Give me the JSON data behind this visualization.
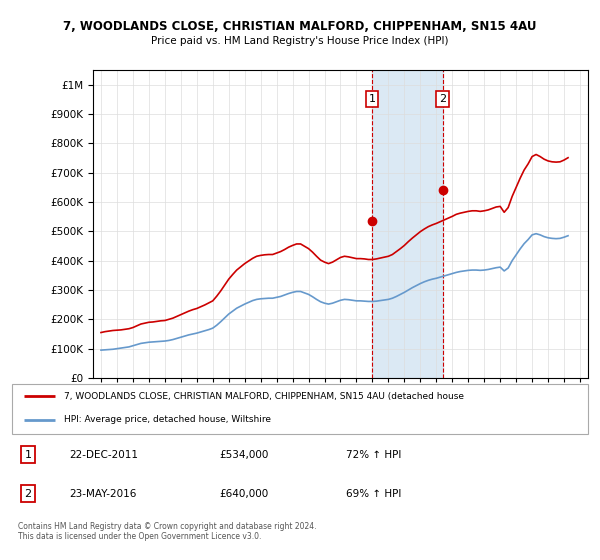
{
  "title": "7, WOODLANDS CLOSE, CHRISTIAN MALFORD, CHIPPENHAM, SN15 4AU",
  "subtitle": "Price paid vs. HM Land Registry's House Price Index (HPI)",
  "property_label": "7, WOODLANDS CLOSE, CHRISTIAN MALFORD, CHIPPENHAM, SN15 4AU (detached house",
  "hpi_label": "HPI: Average price, detached house, Wiltshire",
  "sale1_date": "22-DEC-2011",
  "sale1_price": 534000,
  "sale1_pct": "72% ↑ HPI",
  "sale2_date": "23-MAY-2016",
  "sale2_price": 640000,
  "sale2_pct": "69% ↑ HPI",
  "copyright": "Contains HM Land Registry data © Crown copyright and database right 2024.\nThis data is licensed under the Open Government Licence v3.0.",
  "property_color": "#cc0000",
  "hpi_color": "#6699cc",
  "shade_color": "#cce0f0",
  "sale1_x": 2011.97,
  "sale2_x": 2016.39,
  "ylim_min": 0,
  "ylim_max": 1050000,
  "xlim_min": 1994.5,
  "xlim_max": 2025.5,
  "hpi_data_x": [
    1995,
    1995.25,
    1995.5,
    1995.75,
    1996,
    1996.25,
    1996.5,
    1996.75,
    1997,
    1997.25,
    1997.5,
    1997.75,
    1998,
    1998.25,
    1998.5,
    1998.75,
    1999,
    1999.25,
    1999.5,
    1999.75,
    2000,
    2000.25,
    2000.5,
    2000.75,
    2001,
    2001.25,
    2001.5,
    2001.75,
    2002,
    2002.25,
    2002.5,
    2002.75,
    2003,
    2003.25,
    2003.5,
    2003.75,
    2004,
    2004.25,
    2004.5,
    2004.75,
    2005,
    2005.25,
    2005.5,
    2005.75,
    2006,
    2006.25,
    2006.5,
    2006.75,
    2007,
    2007.25,
    2007.5,
    2007.75,
    2008,
    2008.25,
    2008.5,
    2008.75,
    2009,
    2009.25,
    2009.5,
    2009.75,
    2010,
    2010.25,
    2010.5,
    2010.75,
    2011,
    2011.25,
    2011.5,
    2011.75,
    2012,
    2012.25,
    2012.5,
    2012.75,
    2013,
    2013.25,
    2013.5,
    2013.75,
    2014,
    2014.25,
    2014.5,
    2014.75,
    2015,
    2015.25,
    2015.5,
    2015.75,
    2016,
    2016.25,
    2016.5,
    2016.75,
    2017,
    2017.25,
    2017.5,
    2017.75,
    2018,
    2018.25,
    2018.5,
    2018.75,
    2019,
    2019.25,
    2019.5,
    2019.75,
    2020,
    2020.25,
    2020.5,
    2020.75,
    2021,
    2021.25,
    2021.5,
    2021.75,
    2022,
    2022.25,
    2022.5,
    2022.75,
    2023,
    2023.25,
    2023.5,
    2023.75,
    2024,
    2024.25
  ],
  "hpi_data_y": [
    95000,
    96000,
    97000,
    98000,
    100000,
    102000,
    104000,
    106000,
    110000,
    114000,
    118000,
    120000,
    122000,
    123000,
    124000,
    125000,
    126000,
    128000,
    131000,
    135000,
    139000,
    143000,
    147000,
    150000,
    153000,
    157000,
    161000,
    165000,
    170000,
    180000,
    192000,
    205000,
    218000,
    228000,
    238000,
    245000,
    252000,
    258000,
    264000,
    268000,
    270000,
    271000,
    272000,
    272000,
    275000,
    278000,
    283000,
    288000,
    292000,
    295000,
    295000,
    290000,
    285000,
    277000,
    268000,
    260000,
    255000,
    252000,
    255000,
    260000,
    265000,
    268000,
    267000,
    265000,
    263000,
    263000,
    262000,
    261000,
    261000,
    262000,
    264000,
    266000,
    268000,
    272000,
    278000,
    285000,
    292000,
    300000,
    308000,
    315000,
    322000,
    328000,
    333000,
    337000,
    340000,
    344000,
    348000,
    352000,
    356000,
    360000,
    363000,
    365000,
    367000,
    368000,
    368000,
    367000,
    368000,
    370000,
    373000,
    376000,
    378000,
    365000,
    375000,
    400000,
    420000,
    440000,
    458000,
    472000,
    488000,
    492000,
    488000,
    482000,
    478000,
    476000,
    475000,
    476000,
    480000,
    485000
  ],
  "prop_data_x": [
    1995,
    1995.25,
    1995.5,
    1995.75,
    1996,
    1996.25,
    1996.5,
    1996.75,
    1997,
    1997.25,
    1997.5,
    1997.75,
    1998,
    1998.25,
    1998.5,
    1998.75,
    1999,
    1999.25,
    1999.5,
    1999.75,
    2000,
    2000.25,
    2000.5,
    2000.75,
    2001,
    2001.25,
    2001.5,
    2001.75,
    2002,
    2002.25,
    2002.5,
    2002.75,
    2003,
    2003.25,
    2003.5,
    2003.75,
    2004,
    2004.25,
    2004.5,
    2004.75,
    2005,
    2005.25,
    2005.5,
    2005.75,
    2006,
    2006.25,
    2006.5,
    2006.75,
    2007,
    2007.25,
    2007.5,
    2007.75,
    2008,
    2008.25,
    2008.5,
    2008.75,
    2009,
    2009.25,
    2009.5,
    2009.75,
    2010,
    2010.25,
    2010.5,
    2010.75,
    2011,
    2011.25,
    2011.5,
    2011.75,
    2012,
    2012.25,
    2012.5,
    2012.75,
    2013,
    2013.25,
    2013.5,
    2013.75,
    2014,
    2014.25,
    2014.5,
    2014.75,
    2015,
    2015.25,
    2015.5,
    2015.75,
    2016,
    2016.25,
    2016.5,
    2016.75,
    2017,
    2017.25,
    2017.5,
    2017.75,
    2018,
    2018.25,
    2018.5,
    2018.75,
    2019,
    2019.25,
    2019.5,
    2019.75,
    2020,
    2020.25,
    2020.5,
    2020.75,
    2021,
    2021.25,
    2021.5,
    2021.75,
    2022,
    2022.25,
    2022.5,
    2022.75,
    2023,
    2023.25,
    2023.5,
    2023.75,
    2024,
    2024.25
  ],
  "prop_data_y": [
    155000,
    158000,
    160000,
    162000,
    163000,
    164000,
    166000,
    168000,
    172000,
    178000,
    184000,
    187000,
    190000,
    191000,
    193000,
    195000,
    196000,
    200000,
    204000,
    210000,
    216000,
    222000,
    228000,
    233000,
    237000,
    243000,
    249000,
    256000,
    263000,
    279000,
    297000,
    317000,
    337000,
    353000,
    368000,
    379000,
    390000,
    399000,
    408000,
    415000,
    418000,
    420000,
    421000,
    421000,
    426000,
    431000,
    438000,
    446000,
    452000,
    457000,
    457000,
    449000,
    441000,
    429000,
    415000,
    402000,
    395000,
    390000,
    395000,
    403000,
    411000,
    415000,
    413000,
    410000,
    407000,
    407000,
    406000,
    404000,
    404000,
    406000,
    409000,
    412000,
    415000,
    421000,
    431000,
    441000,
    452000,
    465000,
    477000,
    488000,
    499000,
    508000,
    516000,
    522000,
    527000,
    533000,
    539000,
    545000,
    551000,
    558000,
    562000,
    565000,
    568000,
    570000,
    570000,
    568000,
    570000,
    573000,
    578000,
    583000,
    585000,
    565000,
    581000,
    619000,
    650000,
    681000,
    709000,
    730000,
    755000,
    762000,
    755000,
    746000,
    740000,
    737000,
    736000,
    737000,
    743000,
    751000
  ]
}
